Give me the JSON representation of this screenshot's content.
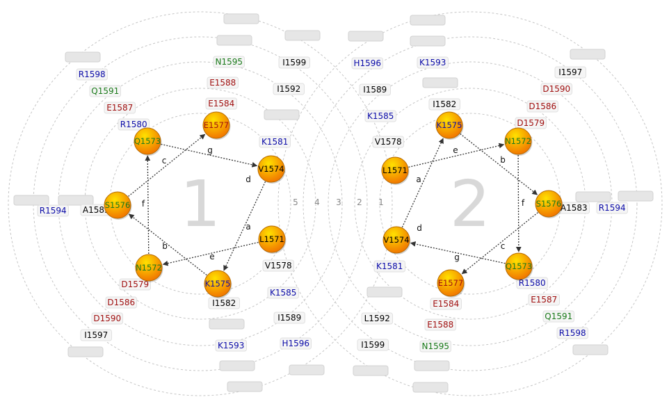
{
  "colors": {
    "hydrophobic": "#000000",
    "basic": "#0b0ba8",
    "acidic": "#a01010",
    "polar": "#1a7a1a",
    "node_gradient_top": "#ffe100",
    "node_gradient_bottom": "#f07000",
    "ring": "#c4c4c4",
    "arrow": "#333333",
    "big_number": "#d8d8d8",
    "empty_label": "#e6e6e6"
  },
  "wheels": [
    {
      "number": "1",
      "position_letters": [
        "a",
        "b",
        "c",
        "d",
        "e",
        "f",
        "g"
      ],
      "residues": [
        {
          "label": "L1571",
          "type": "hydrophobic"
        },
        {
          "label": "N1572",
          "type": "polar"
        },
        {
          "label": "Q1573",
          "type": "polar"
        },
        {
          "label": "V1574",
          "type": "hydrophobic"
        },
        {
          "label": "K1575",
          "type": "basic"
        },
        {
          "label": "S1576",
          "type": "polar"
        },
        {
          "label": "E1577",
          "type": "acidic"
        }
      ],
      "ring_labels": [
        {
          "ring": 1,
          "items": [
            {
              "label": "V1578",
              "type": "hydrophobic"
            },
            {
              "label": "D1579",
              "type": "acidic"
            },
            {
              "label": "R1580",
              "type": "basic"
            },
            {
              "label": "K1581",
              "type": "basic"
            },
            {
              "label": "I1582",
              "type": "hydrophobic"
            },
            {
              "label": "A1583",
              "type": "hydrophobic"
            },
            {
              "label": "E1584",
              "type": "acidic"
            }
          ]
        },
        {
          "ring": 2,
          "items": [
            {
              "label": "K1585",
              "type": "basic"
            },
            {
              "label": "D1586",
              "type": "acidic"
            },
            {
              "label": "E1587",
              "type": "acidic"
            },
            {
              "label": "E1588",
              "type": "acidic"
            },
            {
              "label": "I1589",
              "type": "hydrophobic"
            },
            {
              "label": "D1590",
              "type": "acidic"
            },
            {
              "label": "Q1591",
              "type": "polar"
            }
          ]
        },
        {
          "ring": 3,
          "items": [
            {
              "label": "I1592",
              "type": "hydrophobic"
            },
            {
              "label": "K1593",
              "type": "basic"
            },
            {
              "label": "R1594",
              "type": "basic"
            },
            {
              "label": "N1595",
              "type": "polar"
            },
            {
              "label": "H1596",
              "type": "basic"
            },
            {
              "label": "I1597",
              "type": "hydrophobic"
            },
            {
              "label": "R1598",
              "type": "basic"
            }
          ]
        },
        {
          "ring": 4,
          "items": [
            {
              "label": "I1599",
              "type": "hydrophobic"
            }
          ]
        }
      ]
    },
    {
      "number": "2",
      "position_letters": [
        "a",
        "b",
        "c",
        "d",
        "e",
        "f",
        "g"
      ],
      "residues": [
        {
          "label": "L1571",
          "type": "hydrophobic"
        },
        {
          "label": "N1572",
          "type": "polar"
        },
        {
          "label": "Q1573",
          "type": "polar"
        },
        {
          "label": "V1574",
          "type": "hydrophobic"
        },
        {
          "label": "K1575",
          "type": "basic"
        },
        {
          "label": "S1576",
          "type": "polar"
        },
        {
          "label": "E1577",
          "type": "acidic"
        }
      ],
      "ring_labels": [
        {
          "ring": 1,
          "items": [
            {
              "label": "V1578",
              "type": "hydrophobic"
            },
            {
              "label": "D1579",
              "type": "acidic"
            },
            {
              "label": "R1580",
              "type": "basic"
            },
            {
              "label": "K1581",
              "type": "basic"
            },
            {
              "label": "I1582",
              "type": "hydrophobic"
            },
            {
              "label": "A1583",
              "type": "hydrophobic"
            },
            {
              "label": "E1584",
              "type": "acidic"
            }
          ]
        },
        {
          "ring": 2,
          "items": [
            {
              "label": "K1585",
              "type": "basic"
            },
            {
              "label": "D1586",
              "type": "acidic"
            },
            {
              "label": "E1587",
              "type": "acidic"
            },
            {
              "label": "E1588",
              "type": "acidic"
            },
            {
              "label": "I1589",
              "type": "hydrophobic"
            },
            {
              "label": "D1590",
              "type": "acidic"
            },
            {
              "label": "Q1591",
              "type": "polar"
            }
          ]
        },
        {
          "ring": 3,
          "items": [
            {
              "label": "L1592",
              "type": "hydrophobic"
            },
            {
              "label": "K1593",
              "type": "basic"
            },
            {
              "label": "R1594",
              "type": "basic"
            },
            {
              "label": "N1595",
              "type": "polar"
            },
            {
              "label": "H1596",
              "type": "basic"
            },
            {
              "label": "I1597",
              "type": "hydrophobic"
            },
            {
              "label": "R1598",
              "type": "basic"
            }
          ]
        },
        {
          "ring": 4,
          "items": [
            {
              "label": "I1599",
              "type": "hydrophobic"
            }
          ]
        }
      ]
    }
  ],
  "ring_numbers": [
    "1",
    "2",
    "3",
    "4",
    "5"
  ]
}
